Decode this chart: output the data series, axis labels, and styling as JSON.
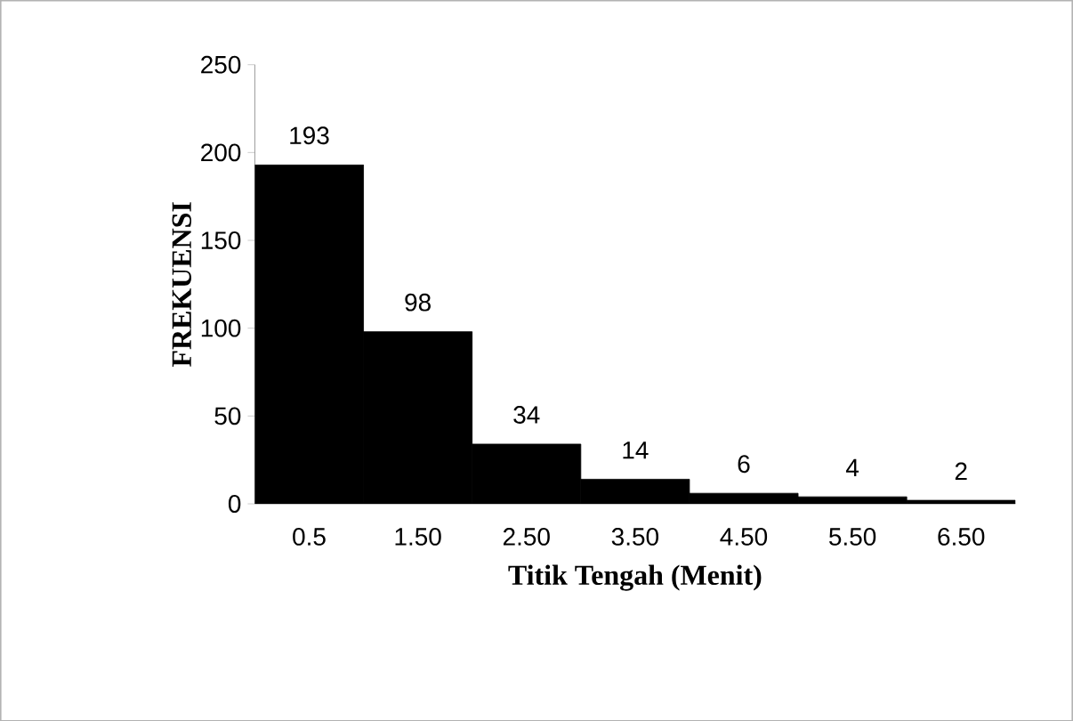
{
  "chart_data": {
    "type": "bar",
    "xlabel": "Titik Tengah (Menit)",
    "ylabel": "FREKUENSI",
    "categories": [
      "0.5",
      "1.50",
      "2.50",
      "3.50",
      "4.50",
      "5.50",
      "6.50"
    ],
    "values": [
      193,
      98,
      34,
      14,
      6,
      4,
      2
    ],
    "color": "#000000",
    "ylim": [
      0,
      250
    ],
    "yticks": [
      0,
      50,
      100,
      150,
      200,
      250
    ],
    "data_labels": true,
    "grid": false
  }
}
